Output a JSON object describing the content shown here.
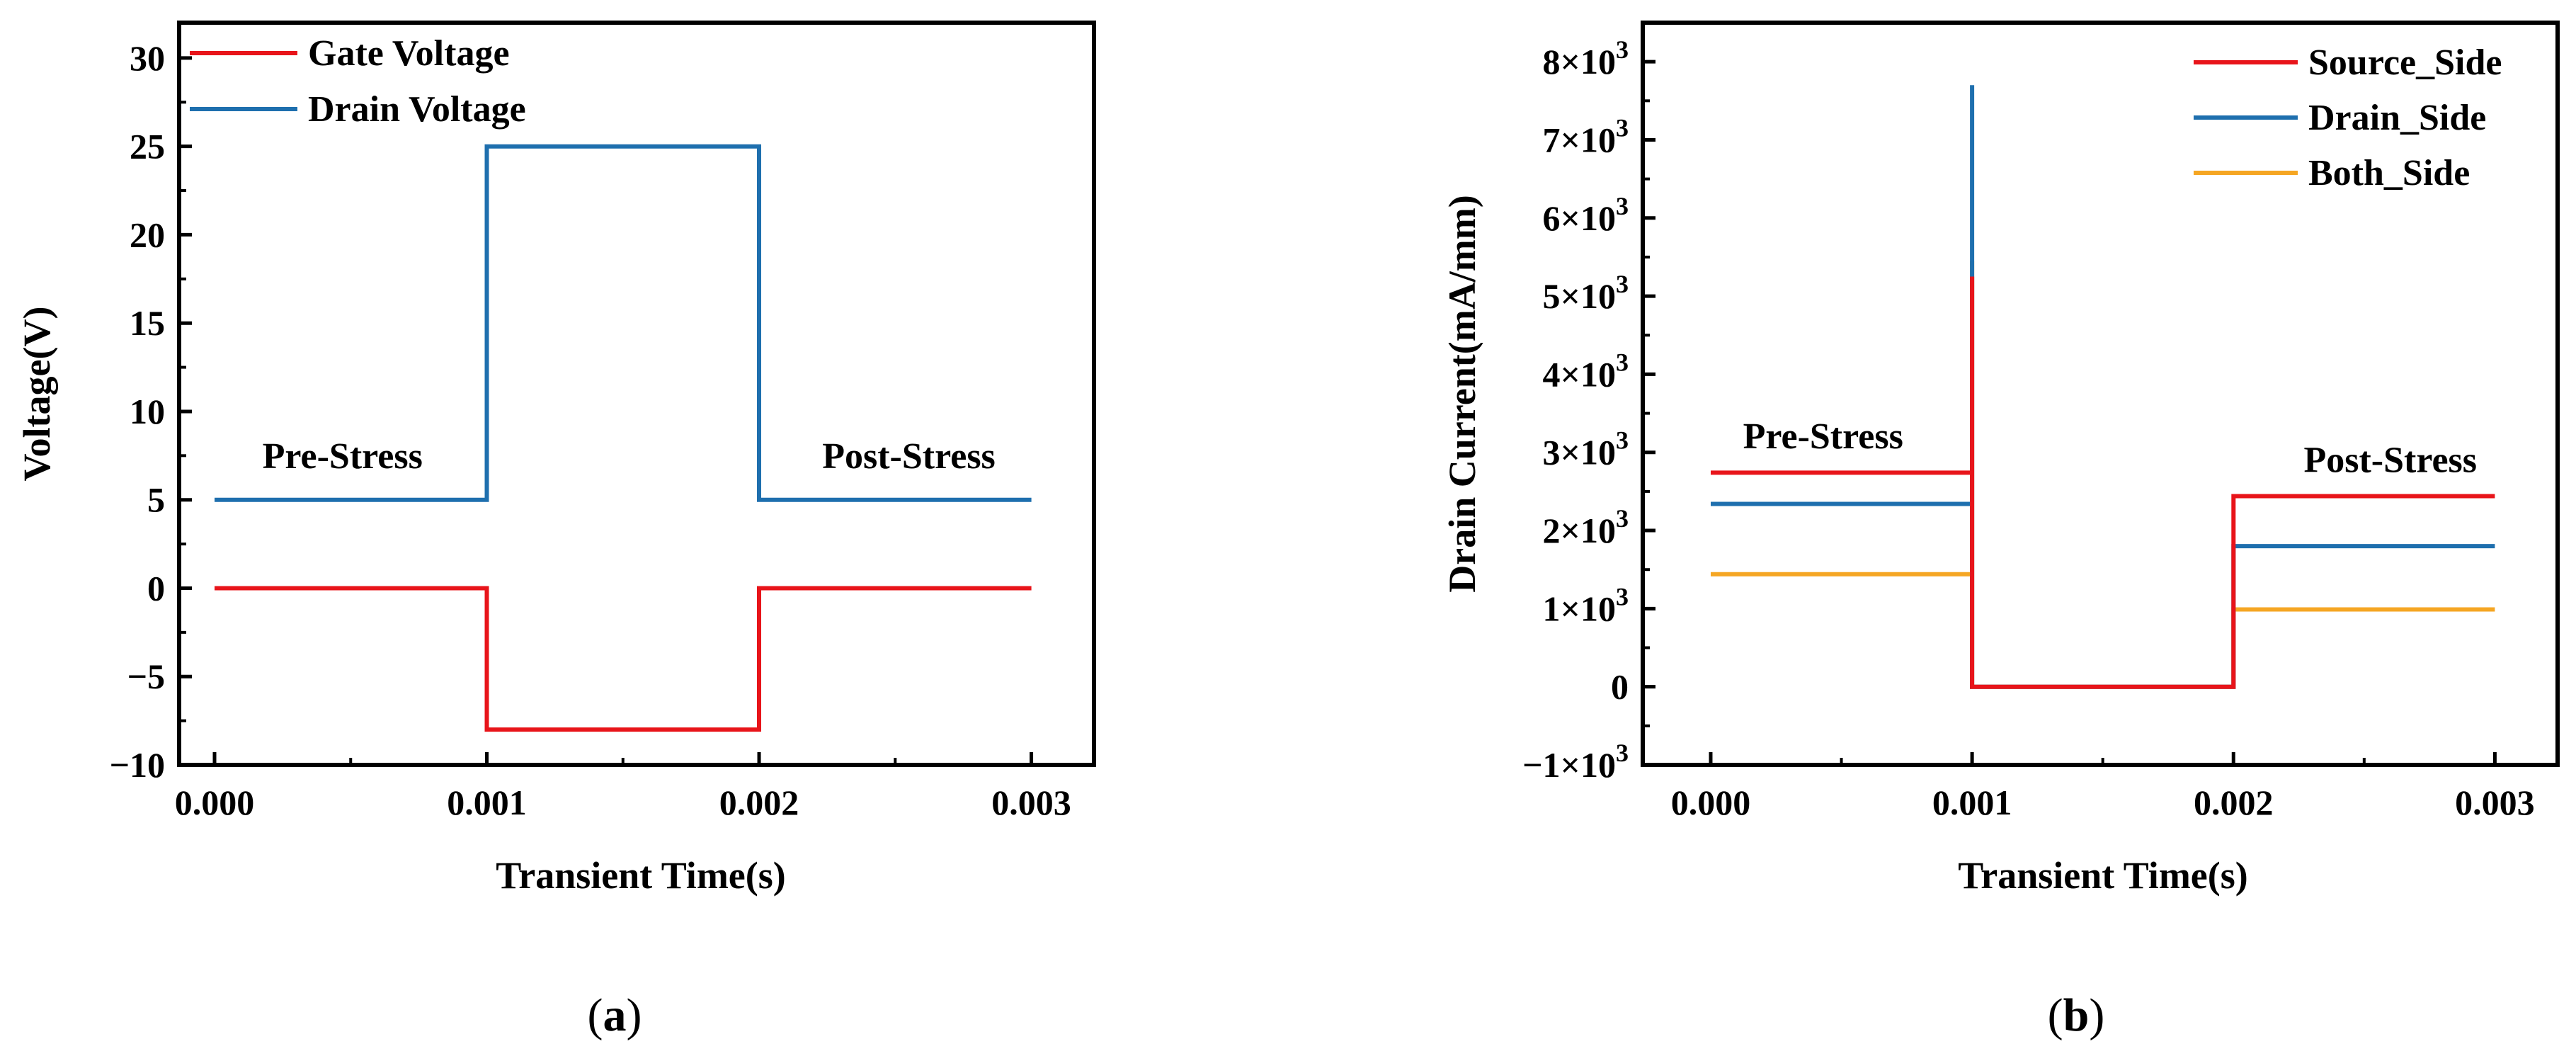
{
  "chart_data": [
    {
      "panel": "a",
      "caption_letter": "a",
      "type": "line",
      "xlabel": "Transient Time(s)",
      "ylabel": "Voltage(V)",
      "xlim": [
        -0.00013,
        0.00323
      ],
      "ylim": [
        -10,
        32
      ],
      "xticks": [
        0,
        0.001,
        0.002,
        0.003
      ],
      "xtick_labels": [
        "0.000",
        "0.001",
        "0.002",
        "0.003"
      ],
      "yticks": [
        -10,
        -5,
        0,
        5,
        10,
        15,
        20,
        25,
        30
      ],
      "ytick_labels": [
        "−10",
        "−5",
        "0",
        "5",
        "10",
        "15",
        "20",
        "25",
        "30"
      ],
      "series": [
        {
          "name": "Gate Voltage",
          "color": "#e8141a",
          "x": [
            0,
            0.001,
            0.001,
            0.002,
            0.002,
            0.003
          ],
          "y": [
            0,
            0,
            -8,
            -8,
            0,
            0
          ]
        },
        {
          "name": "Drain Voltage",
          "color": "#1e6fae",
          "x": [
            0,
            0.001,
            0.001,
            0.002,
            0.002,
            0.003
          ],
          "y": [
            5,
            5,
            25,
            25,
            5,
            5
          ]
        }
      ],
      "annotations": [
        {
          "text": "Pre-Stress",
          "x": 0.00047,
          "y": 6.8
        },
        {
          "text": "Post-Stress",
          "x": 0.00255,
          "y": 6.8
        }
      ],
      "legend": "top-left"
    },
    {
      "panel": "b",
      "caption_letter": "b",
      "type": "line",
      "xlabel": "Transient Time(s)",
      "ylabel": "Drain Current(mA/mm)",
      "xlim": [
        -0.00026,
        0.00324
      ],
      "ylim": [
        -1000,
        8500
      ],
      "xticks": [
        0,
        0.001,
        0.002,
        0.003
      ],
      "xtick_labels": [
        "0.000",
        "0.001",
        "0.002",
        "0.003"
      ],
      "yticks": [
        -1000,
        0,
        1000,
        2000,
        3000,
        4000,
        5000,
        6000,
        7000,
        8000
      ],
      "ytick_mantissas": [
        "−1",
        "0",
        "1",
        "2",
        "3",
        "4",
        "5",
        "6",
        "7",
        "8"
      ],
      "ytick_base": "×10",
      "ytick_exponent": "3",
      "series": [
        {
          "name": "Source_Side",
          "color": "#e8141a",
          "x": [
            0,
            0.001,
            0.001,
            0.001,
            0.002,
            0.002,
            0.003
          ],
          "y": [
            2740,
            2740,
            5250,
            0,
            0,
            2440,
            2440
          ]
        },
        {
          "name": "Drain_Side",
          "color": "#1e6fae",
          "x": [
            0,
            0.001,
            0.001,
            0.001,
            0.002,
            0.002,
            0.003
          ],
          "y": [
            2340,
            2340,
            7700,
            0,
            0,
            1800,
            1800
          ]
        },
        {
          "name": "Both_Side",
          "color": "#f5a623",
          "x": [
            0,
            0.001,
            0.001,
            0.001,
            0.002,
            0.002,
            0.003
          ],
          "y": [
            1440,
            1440,
            5450,
            0,
            0,
            990,
            990
          ]
        }
      ],
      "draw_order": [
        "Both_Side",
        "Drain_Side",
        "Source_Side"
      ],
      "annotations": [
        {
          "text": "Pre-Stress",
          "x": 0.00043,
          "y": 3050
        },
        {
          "text": "Post-Stress",
          "x": 0.0026,
          "y": 2750
        }
      ],
      "legend": "top-right"
    }
  ]
}
